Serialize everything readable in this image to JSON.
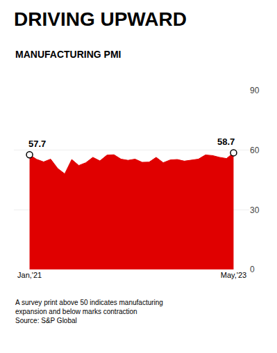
{
  "chart_data": {
    "type": "area",
    "title": "DRIVING UPWARD",
    "subtitle": "MANUFACTURING PMI",
    "categories": [
      "Jan,'21",
      null,
      null,
      null,
      null,
      null,
      null,
      null,
      null,
      null,
      null,
      null,
      null,
      null,
      null,
      null,
      null,
      null,
      null,
      null,
      null,
      null,
      null,
      null,
      null,
      null,
      null,
      null,
      null,
      "May,'23"
    ],
    "values": [
      57.7,
      55.4,
      54.1,
      55.5,
      50.8,
      48.1,
      55.3,
      52.3,
      53.7,
      56.4,
      54.6,
      57.5,
      57.7,
      55.5,
      54.9,
      55.5,
      53.9,
      54.0,
      56.4,
      53.7,
      55.1,
      55.3,
      54.5,
      55.0,
      55.5,
      57.6,
      57.3,
      56.4,
      55.8,
      58.7
    ],
    "color": "#e00000",
    "ylim": [
      0,
      90
    ],
    "yticks": [
      0,
      30,
      60,
      90
    ],
    "grid": true,
    "annotations": [
      "57.7",
      "58.7"
    ],
    "footnote": "A survey print above 50 indicates manufacturing\nexpansion and below marks contraction\nSource: S&P Global"
  }
}
